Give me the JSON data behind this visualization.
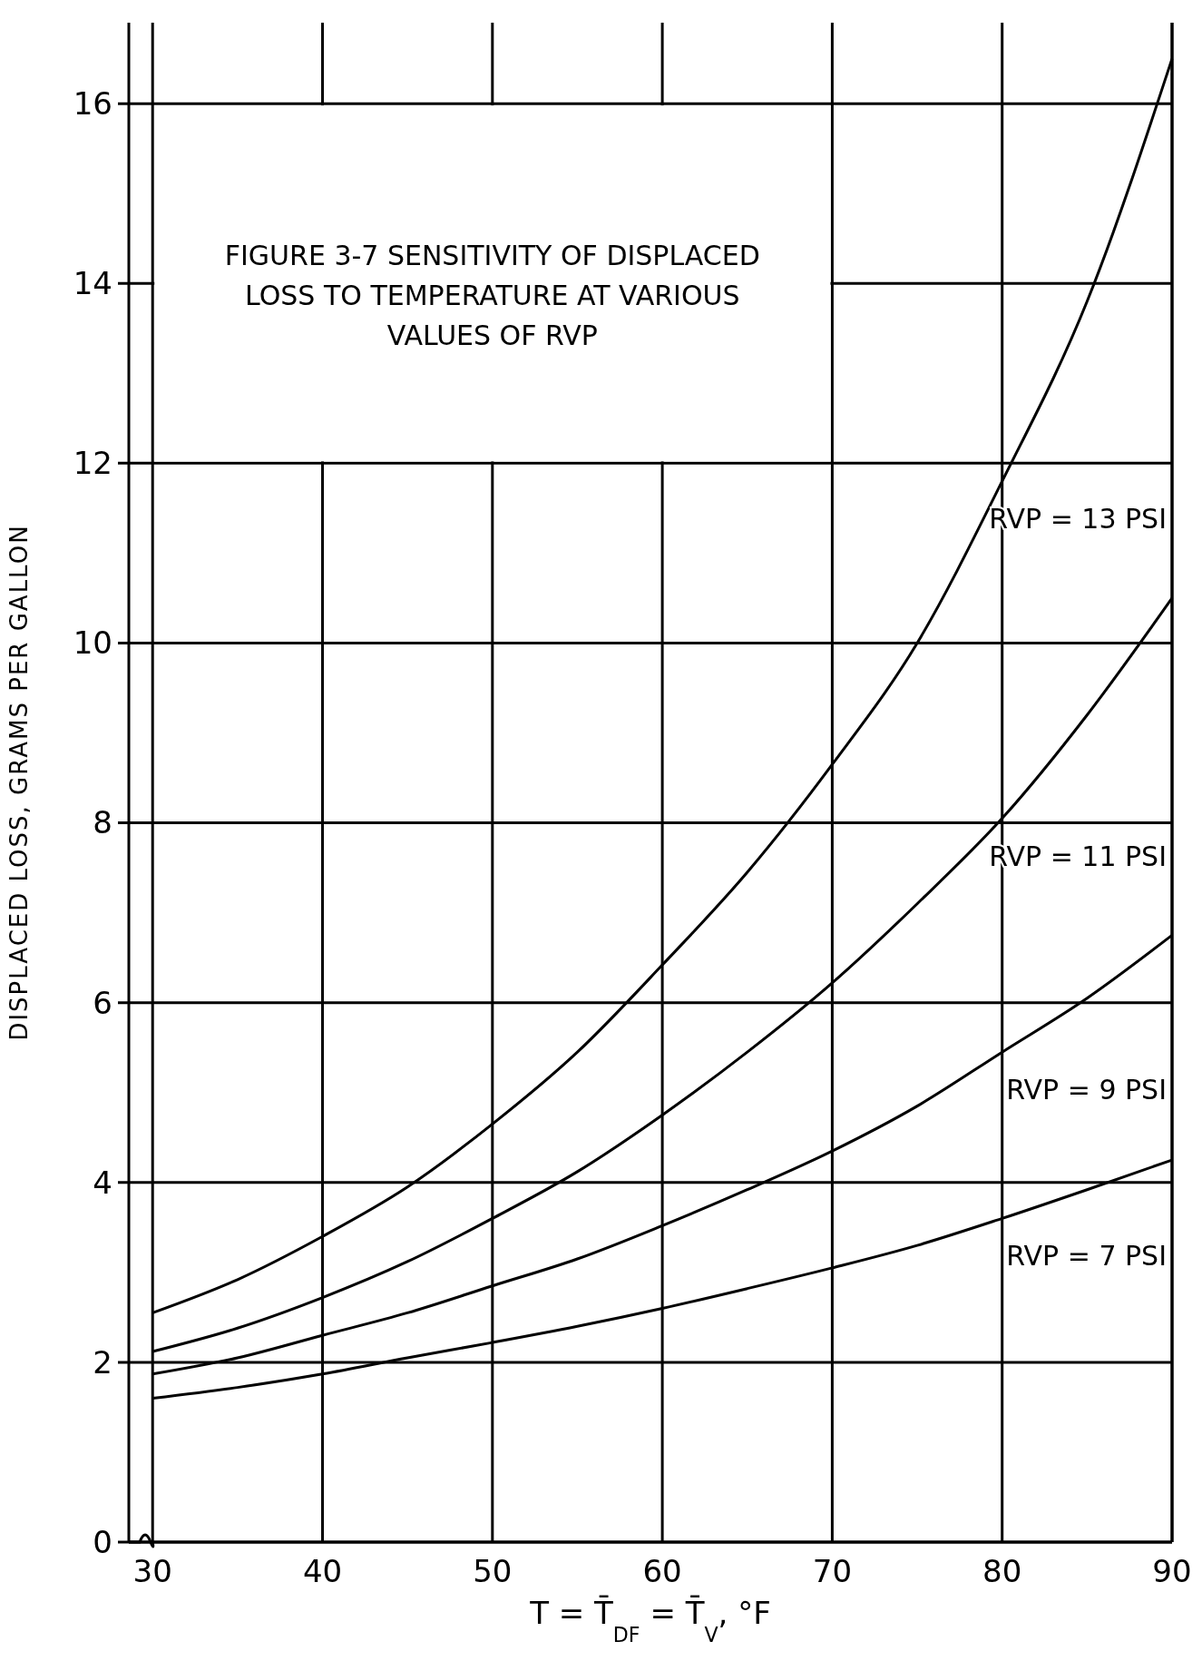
{
  "chart_data": {
    "type": "line",
    "title": "FIGURE 3-7 SENSITIVITY OF DISPLACED LOSS TO TEMPERATURE AT VARIOUS VALUES OF RVP",
    "xlabel": "T = T̄$_{DF}$ = T̄$_{V}$, °F",
    "ylabel": "DISPLACED LOSS, GRAMS PER GALLON",
    "x": [
      30,
      35,
      40,
      45,
      50,
      55,
      60,
      65,
      70,
      75,
      80,
      85,
      90
    ],
    "series": [
      {
        "name": "RVP = 13 PSI",
        "color": "#000000",
        "values": [
          2.55,
          2.92,
          3.4,
          3.95,
          4.65,
          5.45,
          6.42,
          7.45,
          8.65,
          10.0,
          11.8,
          13.8,
          16.5
        ]
      },
      {
        "name": "RVP = 11 PSI",
        "color": "#000000",
        "values": [
          2.12,
          2.38,
          2.72,
          3.12,
          3.6,
          4.12,
          4.75,
          5.45,
          6.22,
          7.1,
          8.05,
          9.2,
          10.5
        ]
      },
      {
        "name": "RVP = 9 PSI",
        "color": "#000000",
        "values": [
          1.87,
          2.05,
          2.3,
          2.55,
          2.85,
          3.15,
          3.52,
          3.92,
          4.35,
          4.85,
          5.45,
          6.05,
          6.75
        ]
      },
      {
        "name": "RVP = 7 PSI",
        "color": "#000000",
        "values": [
          1.6,
          1.72,
          1.87,
          2.05,
          2.22,
          2.4,
          2.6,
          2.82,
          3.05,
          3.3,
          3.6,
          3.92,
          4.25
        ]
      }
    ],
    "xlim": [
      28.6,
      90
    ],
    "xticks": [
      30,
      40,
      50,
      60,
      70,
      80,
      90
    ],
    "ylim": [
      0,
      16.9
    ],
    "yticks": [
      0,
      2,
      4,
      6,
      8,
      10,
      12,
      14,
      16
    ],
    "grid": true,
    "marker": "none",
    "line_style": "solid"
  }
}
